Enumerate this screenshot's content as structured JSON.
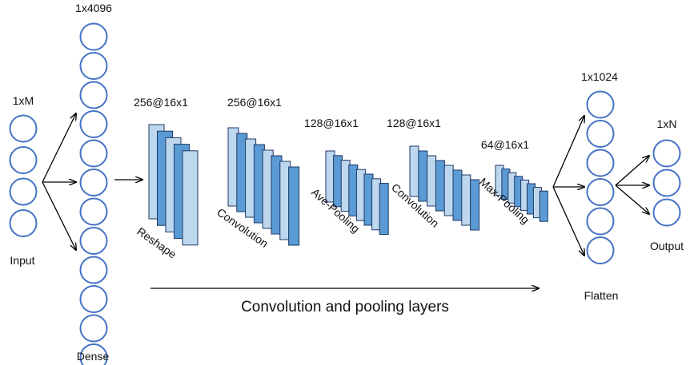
{
  "colors": {
    "node_stroke": "#4472C4",
    "node_fill": "#ffffff",
    "plate_light": "#BDD7EE",
    "plate_dark": "#5B9BD5",
    "plate_stroke": "#1F3864",
    "arrow": "#000000"
  },
  "input": {
    "dim_label": "1xM",
    "name": "Input",
    "node_count": 4
  },
  "dense": {
    "dim_label": "1x4096",
    "name": "Dense",
    "node_count": 12
  },
  "conv_blocks": [
    {
      "dim_label": "256@16x1",
      "name": "Reshape",
      "plate_count": 5
    },
    {
      "dim_label": "256@16x1",
      "name": "Convolution",
      "plate_count": 8
    },
    {
      "dim_label": "128@16x1",
      "name": "Ave-Pooling",
      "plate_count": 8
    },
    {
      "dim_label": "128@16x1",
      "name": "Convolution",
      "plate_count": 8
    },
    {
      "dim_label": "64@16x1",
      "name": "Max-Pooling",
      "plate_count": 8
    }
  ],
  "flatten": {
    "dim_label": "1x1024",
    "name": "Flatten",
    "node_count": 6
  },
  "output": {
    "dim_label": "1xN",
    "name": "Output",
    "node_count": 3
  },
  "caption": "Convolution and pooling layers"
}
